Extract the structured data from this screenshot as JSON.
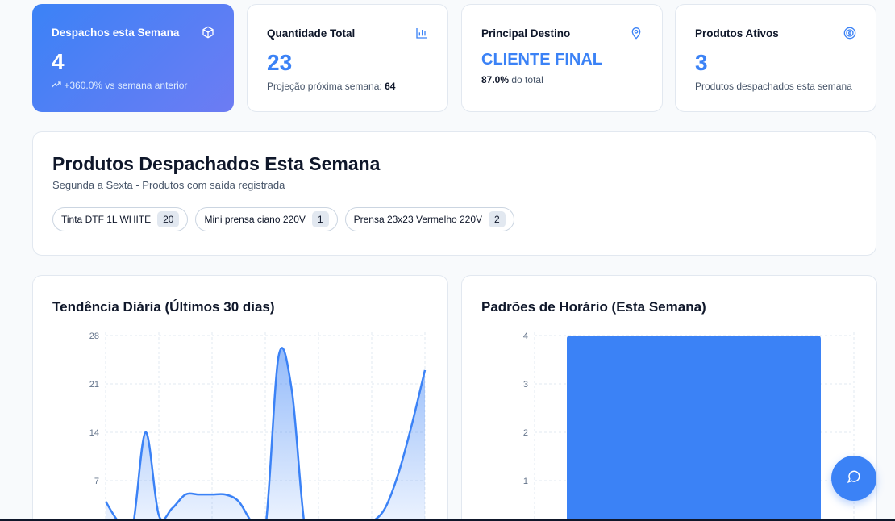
{
  "stats": [
    {
      "title": "Despachos esta Semana",
      "value": "4",
      "sub": "+360.0% vs semana anterior",
      "icon": "box-icon"
    },
    {
      "title": "Quantidade Total",
      "value": "23",
      "sub_label": "Projeção próxima semana:",
      "sub_value": "64",
      "icon": "bar-chart-icon"
    },
    {
      "title": "Principal Destino",
      "value": "CLIENTE FINAL",
      "sub_value": "87.0%",
      "sub_label": "do total",
      "icon": "map-pin-icon"
    },
    {
      "title": "Produtos Ativos",
      "value": "3",
      "sub": "Produtos despachados esta semana",
      "icon": "target-icon"
    }
  ],
  "products": {
    "title": "Produtos Despachados Esta Semana",
    "subtitle": "Segunda a Sexta - Produtos com saída registrada",
    "chips": [
      {
        "name": "Tinta DTF 1L WHITE",
        "count": "20"
      },
      {
        "name": "Mini prensa ciano 220V",
        "count": "1"
      },
      {
        "name": "Prensa 23x23 Vermelho 220V",
        "count": "2"
      }
    ]
  },
  "chart_data": [
    {
      "type": "area",
      "title": "Tendência Diária (Últimos 30 dias)",
      "x": [
        0,
        1,
        2,
        3,
        4,
        5,
        6,
        7,
        8,
        9,
        10,
        11,
        12,
        13,
        14,
        15,
        16,
        17,
        18,
        19,
        20,
        21,
        22,
        23,
        24
      ],
      "values": [
        4,
        1,
        0,
        14,
        2,
        3,
        5,
        5,
        5,
        5,
        4,
        1,
        0,
        25,
        20,
        0,
        0,
        0,
        0,
        0,
        1,
        3,
        8,
        15,
        23
      ],
      "ylim": [
        0,
        28
      ],
      "yticks": [
        "28",
        "21",
        "14",
        "7"
      ],
      "grid": true,
      "color": "#3b82f6"
    },
    {
      "type": "bar",
      "title": "Padrões de Horário (Esta Semana)",
      "categories": [
        ""
      ],
      "values": [
        4
      ],
      "ylim": [
        0,
        4
      ],
      "yticks": [
        "4",
        "3",
        "2",
        "1"
      ],
      "grid": true,
      "color": "#3b82f6"
    }
  ],
  "colors": {
    "accent": "#3b82f6",
    "gradient_end": "#6d7cf3"
  },
  "fab": {
    "icon": "chat-icon"
  }
}
